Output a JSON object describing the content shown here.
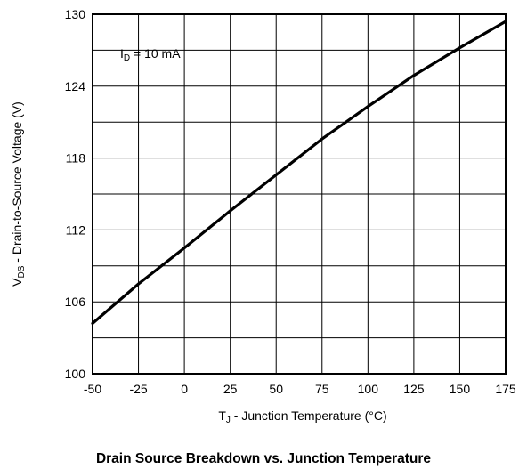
{
  "chart_data": {
    "type": "line",
    "title": "Drain Source Breakdown vs. Junction Temperature",
    "xlabel": {
      "main": "T",
      "sub": "J",
      "rest": " - Junction Temperature (°C)"
    },
    "ylabel": {
      "main": "V",
      "sub": "DS",
      "rest": " - Drain-to-Source Voltage (V)"
    },
    "annotation": {
      "main": "I",
      "sub": "D",
      "rest": " = 10 mA"
    },
    "xlim": [
      -50,
      175
    ],
    "ylim": [
      100,
      130
    ],
    "x_ticks": [
      -50,
      -25,
      0,
      25,
      50,
      75,
      100,
      125,
      150,
      175
    ],
    "x_tick_labels": [
      "-50",
      "-25",
      "0",
      "25",
      "50",
      "75",
      "100",
      "125",
      "150",
      "175"
    ],
    "y_ticks": [
      100,
      106,
      112,
      118,
      124,
      130
    ],
    "y_tick_labels": [
      "100",
      "106",
      "112",
      "118",
      "124",
      "130"
    ],
    "x_grid": [
      -50,
      -25,
      0,
      25,
      50,
      75,
      100,
      125,
      150,
      175
    ],
    "y_grid": [
      100,
      103,
      106,
      109,
      112,
      115,
      118,
      121,
      124,
      127,
      130
    ],
    "grid": true,
    "series": [
      {
        "color": "#000000",
        "x": [
          -50,
          -25,
          0,
          25,
          50,
          75,
          100,
          125,
          150,
          175
        ],
        "y": [
          104.2,
          107.5,
          110.5,
          113.6,
          116.6,
          119.6,
          122.3,
          124.9,
          127.2,
          129.4
        ]
      }
    ]
  }
}
